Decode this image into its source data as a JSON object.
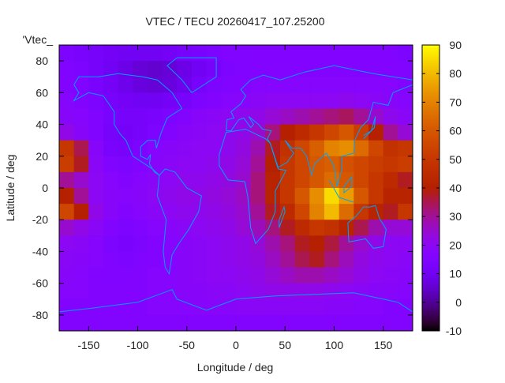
{
  "chart_data": {
    "type": "heatmap",
    "title": "VTEC / TECU 20260417_107.25200",
    "xlabel": "Longitude / deg",
    "ylabel": "Latitude / deg",
    "key_label": "'Vtec_",
    "xlim": [
      -180,
      180
    ],
    "ylim": [
      -90,
      90
    ],
    "clim": [
      -10,
      90
    ],
    "xticks": [
      -150,
      -100,
      -50,
      0,
      50,
      100,
      150
    ],
    "yticks": [
      -80,
      -60,
      -40,
      -20,
      0,
      20,
      40,
      60,
      80
    ],
    "cticks": [
      -10,
      0,
      10,
      20,
      30,
      40,
      50,
      60,
      70,
      80,
      90
    ],
    "lon_centers": [
      -172.5,
      -157.5,
      -142.5,
      -127.5,
      -112.5,
      -97.5,
      -82.5,
      -67.5,
      -52.5,
      -37.5,
      -22.5,
      -7.5,
      7.5,
      22.5,
      37.5,
      52.5,
      67.5,
      82.5,
      97.5,
      112.5,
      127.5,
      142.5,
      157.5,
      172.5
    ],
    "lat_centers": [
      85,
      75,
      65,
      55,
      45,
      35,
      25,
      15,
      5,
      -5,
      -15,
      -25,
      -35,
      -45,
      -55,
      -65,
      -75,
      -85
    ],
    "values": [
      [
        14,
        13,
        12,
        11,
        10,
        10,
        10,
        11,
        12,
        13,
        14,
        15,
        15,
        15,
        15,
        15,
        15,
        15,
        15,
        15,
        15,
        15,
        15,
        14
      ],
      [
        15,
        14,
        12,
        10,
        8,
        6,
        5,
        6,
        8,
        10,
        12,
        14,
        15,
        16,
        16,
        16,
        16,
        16,
        16,
        16,
        16,
        16,
        16,
        15
      ],
      [
        16,
        15,
        13,
        11,
        9,
        7,
        6,
        7,
        9,
        12,
        14,
        15,
        16,
        17,
        17,
        17,
        17,
        17,
        17,
        17,
        17,
        17,
        17,
        16
      ],
      [
        17,
        16,
        14,
        12,
        11,
        10,
        10,
        11,
        12,
        14,
        16,
        17,
        18,
        19,
        20,
        20,
        20,
        20,
        20,
        21,
        20,
        19,
        18,
        17
      ],
      [
        18,
        17,
        15,
        13,
        12,
        12,
        13,
        14,
        16,
        18,
        19,
        20,
        21,
        22,
        24,
        26,
        28,
        30,
        32,
        34,
        30,
        25,
        21,
        19
      ],
      [
        22,
        18,
        15,
        12,
        11,
        12,
        14,
        16,
        18,
        19,
        20,
        21,
        22,
        25,
        32,
        40,
        45,
        50,
        55,
        60,
        52,
        40,
        30,
        24
      ],
      [
        50,
        35,
        18,
        13,
        12,
        14,
        17,
        18,
        19,
        20,
        20,
        21,
        23,
        28,
        38,
        48,
        55,
        62,
        70,
        72,
        65,
        55,
        48,
        50
      ],
      [
        52,
        38,
        19,
        15,
        14,
        16,
        18,
        19,
        20,
        20,
        21,
        22,
        24,
        30,
        40,
        50,
        55,
        60,
        62,
        58,
        55,
        52,
        50,
        52
      ],
      [
        30,
        25,
        20,
        17,
        16,
        17,
        19,
        20,
        21,
        21,
        22,
        23,
        25,
        32,
        42,
        50,
        55,
        60,
        65,
        60,
        55,
        50,
        45,
        38
      ],
      [
        40,
        30,
        20,
        18,
        17,
        18,
        20,
        21,
        22,
        22,
        23,
        24,
        26,
        32,
        42,
        50,
        60,
        72,
        85,
        75,
        60,
        50,
        42,
        42
      ],
      [
        55,
        40,
        22,
        18,
        16,
        17,
        19,
        20,
        21,
        21,
        22,
        23,
        25,
        30,
        38,
        45,
        55,
        70,
        80,
        65,
        50,
        42,
        38,
        50
      ],
      [
        25,
        22,
        19,
        16,
        14,
        15,
        17,
        18,
        19,
        20,
        21,
        22,
        24,
        27,
        32,
        38,
        45,
        50,
        48,
        42,
        35,
        28,
        24,
        24
      ],
      [
        20,
        19,
        17,
        14,
        13,
        14,
        16,
        17,
        18,
        19,
        20,
        21,
        22,
        24,
        28,
        32,
        38,
        40,
        36,
        30,
        25,
        22,
        20,
        20
      ],
      [
        19,
        18,
        17,
        15,
        14,
        15,
        16,
        17,
        18,
        19,
        20,
        21,
        22,
        23,
        26,
        30,
        35,
        38,
        32,
        27,
        23,
        21,
        20,
        19
      ],
      [
        18,
        17,
        16,
        15,
        15,
        16,
        17,
        17,
        18,
        19,
        20,
        20,
        21,
        22,
        24,
        26,
        28,
        28,
        26,
        24,
        22,
        20,
        19,
        18
      ],
      [
        17,
        17,
        16,
        16,
        16,
        16,
        17,
        17,
        18,
        18,
        19,
        19,
        20,
        21,
        22,
        22,
        22,
        22,
        21,
        20,
        19,
        18,
        18,
        17
      ],
      [
        16,
        16,
        16,
        16,
        16,
        16,
        17,
        17,
        17,
        18,
        18,
        18,
        19,
        19,
        19,
        19,
        19,
        19,
        18,
        18,
        17,
        17,
        16,
        16
      ],
      [
        16,
        16,
        16,
        16,
        16,
        16,
        16,
        16,
        16,
        16,
        16,
        16,
        16,
        16,
        16,
        16,
        16,
        16,
        16,
        16,
        16,
        16,
        16,
        16
      ]
    ],
    "coastline_color": "#00a0ff",
    "palette": "gnuplot rgbformulae 7,5,15"
  }
}
